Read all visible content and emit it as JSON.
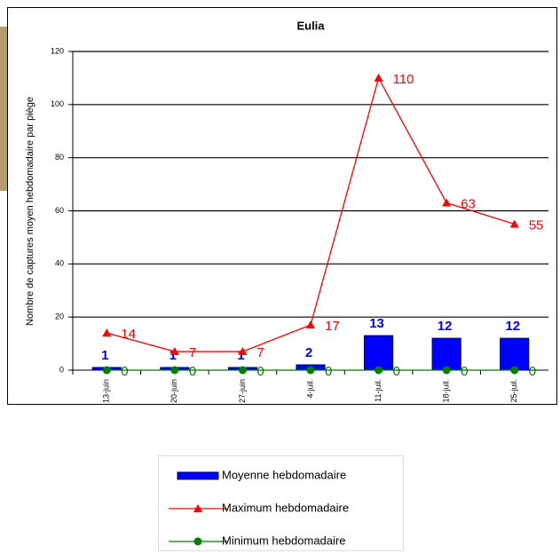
{
  "chart_data": {
    "type": "bar",
    "title": "Eulia",
    "y_label": "Nombre de captures moyen hebdomadaire par piège",
    "categories": [
      "13-juin",
      "20-juin",
      "27-juin",
      "4-juil.",
      "11-juil.",
      "18-juil.",
      "25-juil."
    ],
    "series": [
      {
        "name": "Moyenne hebdomadaire",
        "type": "bar",
        "color": "#0000ff",
        "values": [
          1,
          1,
          1,
          2,
          13,
          12,
          12
        ]
      },
      {
        "name": "Maximum hebdomadaire",
        "type": "line",
        "color": "#ff0000",
        "values": [
          14,
          7,
          7,
          17,
          110,
          63,
          55
        ]
      },
      {
        "name": "Minimum hebdomadaire",
        "type": "line",
        "color": "#008000",
        "values": [
          0,
          0,
          0,
          0,
          0,
          0,
          0
        ]
      }
    ],
    "ylim": [
      0,
      120
    ],
    "yticks": [
      0,
      20,
      40,
      60,
      80,
      100,
      120
    ],
    "grid": true
  }
}
